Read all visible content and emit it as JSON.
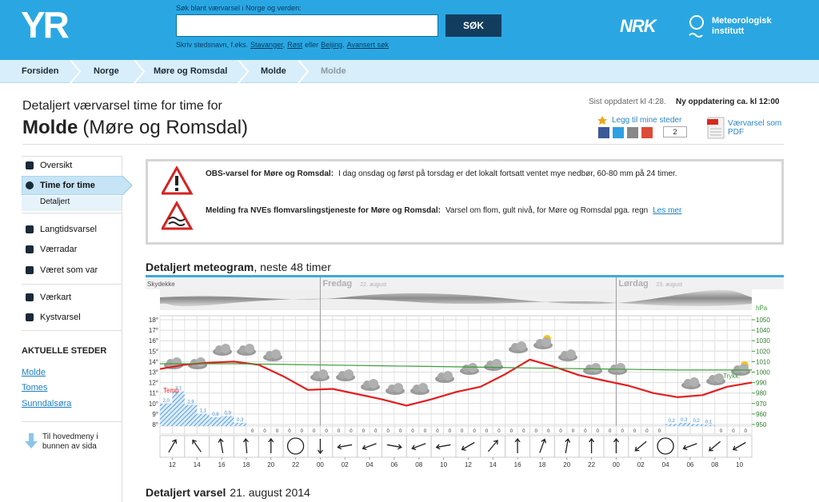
{
  "header": {
    "logo": "YR",
    "search_label": "Søk blant værvarsel i Norge og verden:",
    "search_button": "SØK",
    "hint": {
      "text_1": "Skriv stedsnavn, f.eks.",
      "link_1": "Stavanger",
      "text_2": ",",
      "link_2": "Røst",
      "text_3": "eller",
      "link_3": "Beijing",
      "text_4": ".",
      "link_4": "Avansert søk"
    },
    "nrk": "NRK",
    "met": "Meteorologisk institutt"
  },
  "breadcrumbs": [
    "Forsiden",
    "Norge",
    "Møre og Romsdal",
    "Molde",
    "Molde"
  ],
  "page": {
    "intro": "Detaljert værvarsel time for time for",
    "place": "Molde",
    "region": "(Møre og Romsdal)",
    "updated": "Sist oppdatert kl 4:28.",
    "next_update": "Ny oppdatering ca. kl 12:00",
    "add_place": "Legg til mine steder",
    "share_count": 2,
    "pdf": "Værvarsel som PDF"
  },
  "sidebar": {
    "nav": [
      "Oversikt",
      "Time for time",
      "Detaljert",
      "Langtidsvarsel",
      "Værradar",
      "Været som var",
      "Værkart",
      "Kystvarsel"
    ],
    "current_title": "AKTUELLE STEDER",
    "places": [
      "Molde",
      "Tomes",
      "Sunndalsøra"
    ],
    "to_menu": "Til hovedmeny i bunnen av sida"
  },
  "alerts": [
    {
      "title": "OBS-varsel for Møre og Romsdal:",
      "text": "I dag onsdag og først på torsdag er det lokalt fortsatt ventet mye nedbør, 60-80 mm på 24 timer."
    },
    {
      "title": "Melding fra NVEs flomvarslingstjeneste for Møre og Romsdal:",
      "text": "Varsel om flom, gult nivå, for Møre og Romsdal pga. regn",
      "link": "Les mer"
    }
  ],
  "meteogram_heading": {
    "bold": "Detaljert meteogram",
    "rest": ", neste 48 timer"
  },
  "chart_data": {
    "type": "line",
    "cloud_label": "Skydekke",
    "days": [
      {
        "value": 24,
        "label": "Fredag",
        "date": "22. august"
      },
      {
        "value": 48,
        "label": "Lørdag",
        "date": "23. august"
      }
    ],
    "xlim": [
      11,
      59
    ],
    "xticks": [
      12,
      14,
      16,
      18,
      20,
      22,
      {
        "value": 24,
        "label": "00"
      },
      {
        "value": 26,
        "label": "02"
      },
      {
        "value": 28,
        "label": "04"
      },
      {
        "value": 30,
        "label": "06"
      },
      {
        "value": 32,
        "label": "08"
      },
      {
        "value": 34,
        "label": "10"
      },
      {
        "value": 36,
        "label": "12"
      },
      {
        "value": 38,
        "label": "14"
      },
      {
        "value": 40,
        "label": "16"
      },
      {
        "value": 42,
        "label": "18"
      },
      {
        "value": 44,
        "label": "20"
      },
      {
        "value": 46,
        "label": "22"
      },
      {
        "value": 48,
        "label": "00"
      },
      {
        "value": 50,
        "label": "02"
      },
      {
        "value": 52,
        "label": "04"
      },
      {
        "value": 54,
        "label": "06"
      },
      {
        "value": 56,
        "label": "08"
      },
      {
        "value": 58,
        "label": "10"
      }
    ],
    "ylim": [
      8,
      18
    ],
    "yticks": [
      {
        "value": 8,
        "label": "8°"
      },
      {
        "value": 9,
        "label": "9°"
      },
      {
        "value": 10,
        "label": "10°"
      },
      {
        "value": 11,
        "label": "11°"
      },
      {
        "value": 12,
        "label": "12°"
      },
      {
        "value": 13,
        "label": "13°"
      },
      {
        "value": 14,
        "label": "14°"
      },
      {
        "value": 15,
        "label": "15°"
      },
      {
        "value": 16,
        "label": "16°"
      },
      {
        "value": 17,
        "label": "17°"
      },
      {
        "value": 18,
        "label": "18°"
      }
    ],
    "y2lim": [
      950,
      1050
    ],
    "y2ticks": [
      950,
      960,
      970,
      980,
      990,
      1000,
      1010,
      1020,
      1030,
      1040,
      1050
    ],
    "y2_label": "hPa",
    "series": [
      {
        "name": "Temp",
        "color": "#e41e1e",
        "x": [
          11,
          13,
          15,
          17,
          19,
          21,
          23,
          25,
          27,
          29,
          31,
          33,
          35,
          37,
          39,
          41,
          43,
          45,
          47,
          49,
          51,
          53,
          55,
          57,
          59
        ],
        "values": [
          13.3,
          13.7,
          13.9,
          14.0,
          13.7,
          12.6,
          11.3,
          11.4,
          10.9,
          10.4,
          9.8,
          10.4,
          11.1,
          11.6,
          12.8,
          14.2,
          13.5,
          12.7,
          12.2,
          11.7,
          11.0,
          10.6,
          10.8,
          11.6,
          12.0
        ]
      },
      {
        "name": "Trykk",
        "color": "#3a9e3a",
        "axis": "y2",
        "x": [
          11,
          17,
          23,
          29,
          35,
          41,
          47,
          53,
          59
        ],
        "values": [
          1008,
          1008,
          1007,
          1006,
          1005,
          1004,
          1003,
          1002,
          1002
        ]
      }
    ],
    "precipitation": {
      "color": "#3d8fd6",
      "x": [
        11,
        12,
        13,
        14,
        15,
        16,
        17,
        18,
        19,
        20,
        21,
        22,
        23,
        24,
        25,
        26,
        27,
        28,
        29,
        30,
        31,
        32,
        33,
        34,
        35,
        36,
        37,
        38,
        39,
        40,
        41,
        42,
        43,
        44,
        45,
        46,
        47,
        48,
        49,
        50,
        51,
        52,
        53,
        54,
        55,
        56,
        57,
        58
      ],
      "values": [
        2.0,
        3.1,
        1.9,
        1.1,
        0.8,
        0.9,
        0.3,
        0,
        0,
        0,
        0,
        0,
        0,
        0,
        0,
        0,
        0,
        0,
        0,
        0,
        0,
        0,
        0,
        0,
        0,
        0,
        0,
        0,
        0,
        0,
        0,
        0,
        0,
        0,
        0,
        0,
        0,
        0,
        0,
        0,
        0,
        0.2,
        0.3,
        0.2,
        0.1,
        0,
        0,
        0
      ],
      "value_labels": [
        "2,0",
        "3,1",
        "1,9",
        "1,1",
        "0,8",
        "0,9",
        "0,3",
        "0",
        "0",
        "0",
        "0",
        "0",
        "0",
        "0",
        "0",
        "0",
        "0",
        "0",
        "0",
        "0",
        "0",
        "0",
        "0",
        "0",
        "0",
        "0",
        "0",
        "0",
        "0",
        "0",
        "0",
        "0",
        "0",
        "0",
        "0",
        "0",
        "0",
        "0",
        "0",
        "0",
        "0",
        "0,2",
        "0,3",
        "0,2",
        "0,1",
        "0",
        "0",
        "0"
      ]
    },
    "wind": {
      "x": [
        12,
        14,
        16,
        18,
        20,
        22,
        24,
        26,
        28,
        30,
        32,
        34,
        36,
        38,
        40,
        42,
        44,
        46,
        48,
        50,
        52,
        54,
        56,
        58
      ],
      "direction": [
        30,
        -35,
        -10,
        -5,
        0,
        null,
        180,
        -100,
        -110,
        100,
        -110,
        -100,
        -120,
        40,
        0,
        20,
        10,
        0,
        0,
        -130,
        null,
        -110,
        -130,
        -120
      ]
    }
  },
  "footer_heading": {
    "bold": "Detaljert varsel",
    "rest": "21. august 2014"
  }
}
